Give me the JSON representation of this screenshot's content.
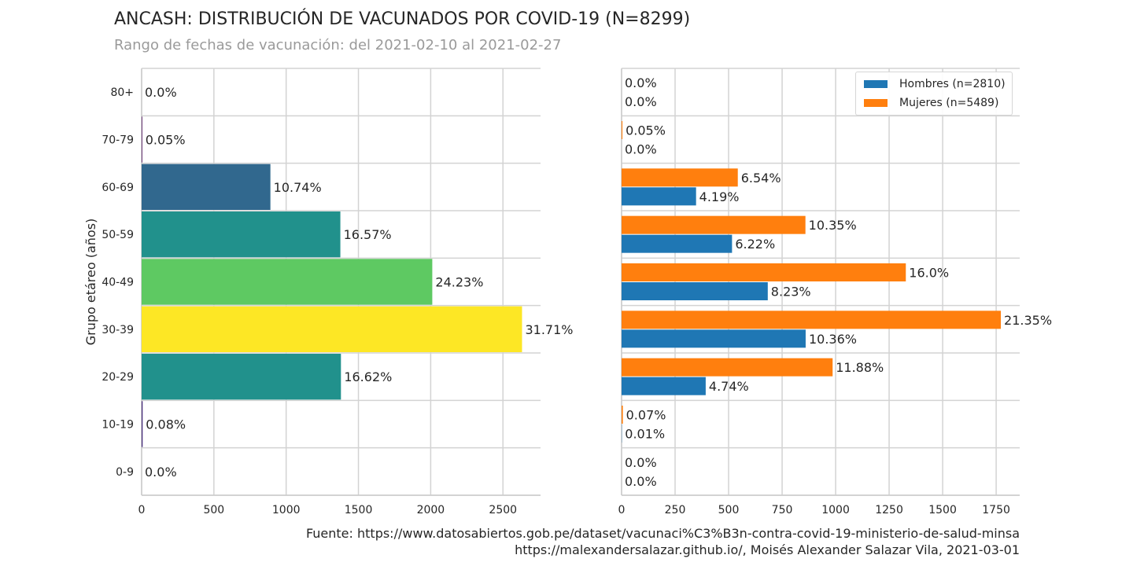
{
  "header": {
    "title": "ANCASH: DISTRIBUCIÓN DE VACUNADOS POR COVID-19 (N=8299)",
    "subtitle": "Rango de fechas de vacunación: del 2021-02-10 al 2021-02-27"
  },
  "footer": {
    "source_line": "Fuente: https://www.datosabiertos.gob.pe/dataset/vacunaci%C3%B3n-contra-covid-19-ministerio-de-salud-minsa",
    "author_line": "https://malexandersalazar.github.io/, Moisés Alexander Salazar Vila, 2021-03-01"
  },
  "legend": {
    "hombres_label": "Hombres (n=2810)",
    "mujeres_label": "Mujeres (n=5489)"
  },
  "chart_data": [
    {
      "type": "bar",
      "orientation": "horizontal",
      "ylabel": "Grupo etáreo (años)",
      "xlim": [
        0,
        2760
      ],
      "xticks": [
        0,
        500,
        1000,
        1500,
        2000,
        2500
      ],
      "grid": true,
      "categories": [
        "0-9",
        "10-19",
        "20-29",
        "30-39",
        "40-49",
        "50-59",
        "60-69",
        "70-79",
        "80+"
      ],
      "values": [
        0,
        7,
        1379,
        2632,
        2011,
        1375,
        891,
        4,
        0
      ],
      "labels": [
        "0.0%",
        "0.08%",
        "16.62%",
        "31.71%",
        "24.23%",
        "16.57%",
        "10.74%",
        "0.05%",
        "0.0%"
      ],
      "colors": [
        "#440154",
        "#472d7b",
        "#21918c",
        "#fde725",
        "#5ec962",
        "#21918c",
        "#31688e",
        "#440154",
        "#440154"
      ]
    },
    {
      "type": "bar",
      "orientation": "horizontal",
      "xlim": [
        0,
        1860
      ],
      "xticks": [
        0,
        250,
        500,
        750,
        1000,
        1250,
        1500,
        1750
      ],
      "grid": true,
      "legend_position": "top-right",
      "categories": [
        "0-9",
        "10-19",
        "20-29",
        "30-39",
        "40-49",
        "50-59",
        "60-69",
        "70-79",
        "80+"
      ],
      "series": [
        {
          "name": "Hombres (n=2810)",
          "color": "#1f77b4",
          "values": [
            0,
            1,
            393,
            860,
            683,
            516,
            348,
            0,
            0
          ],
          "labels": [
            "0.0%",
            "0.01%",
            "4.74%",
            "10.36%",
            "8.23%",
            "6.22%",
            "4.19%",
            "0.0%",
            "0.0%"
          ]
        },
        {
          "name": "Mujeres (n=5489)",
          "color": "#ff7f0e",
          "values": [
            0,
            6,
            986,
            1772,
            1328,
            859,
            543,
            4,
            0
          ],
          "labels": [
            "0.0%",
            "0.07%",
            "11.88%",
            "21.35%",
            "16.0%",
            "10.35%",
            "6.54%",
            "0.05%",
            "0.0%"
          ]
        }
      ]
    }
  ]
}
